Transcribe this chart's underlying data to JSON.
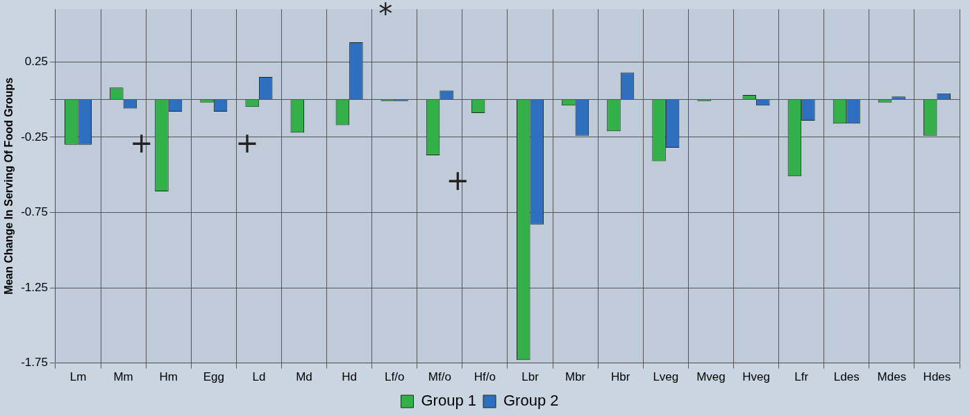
{
  "chart_data": {
    "type": "bar",
    "ylabel": "Mean Change In Serving Of Food Groups",
    "categories": [
      "Lm",
      "Mm",
      "Hm",
      "Egg",
      "Ld",
      "Md",
      "Hd",
      "Lf/o",
      "Mf/o",
      "Hf/o",
      "Lbr",
      "Mbr",
      "Hbr",
      "Lveg",
      "Mveg",
      "Hveg",
      "Lfr",
      "Ldes",
      "Mdes",
      "Hdes"
    ],
    "series": [
      {
        "name": "Group 1",
        "color": "#33b04a",
        "values": [
          -0.3,
          0.08,
          -0.61,
          -0.02,
          -0.05,
          -0.22,
          -0.17,
          -0.01,
          -0.37,
          -0.09,
          -1.73,
          -0.04,
          -0.21,
          -0.41,
          -0.01,
          0.03,
          -0.51,
          -0.16,
          -0.02,
          -0.24
        ]
      },
      {
        "name": "Group 2",
        "color": "#2e6fc0",
        "values": [
          -0.3,
          -0.06,
          -0.08,
          -0.08,
          0.15,
          0,
          0.38,
          -0.01,
          0.06,
          0,
          -0.83,
          -0.24,
          0.18,
          -0.32,
          0,
          -0.04,
          -0.14,
          -0.16,
          0.02,
          0.04
        ]
      }
    ],
    "ylim": [
      -1.75,
      0.6
    ],
    "yticks": [
      0.25,
      {
        "value": 0,
        "label": null
      },
      -0.25,
      -0.75,
      -1.25,
      -1.75
    ],
    "annotations": [
      "*",
      "+",
      "+",
      "+"
    ],
    "grid": true,
    "legend": "bottom"
  }
}
